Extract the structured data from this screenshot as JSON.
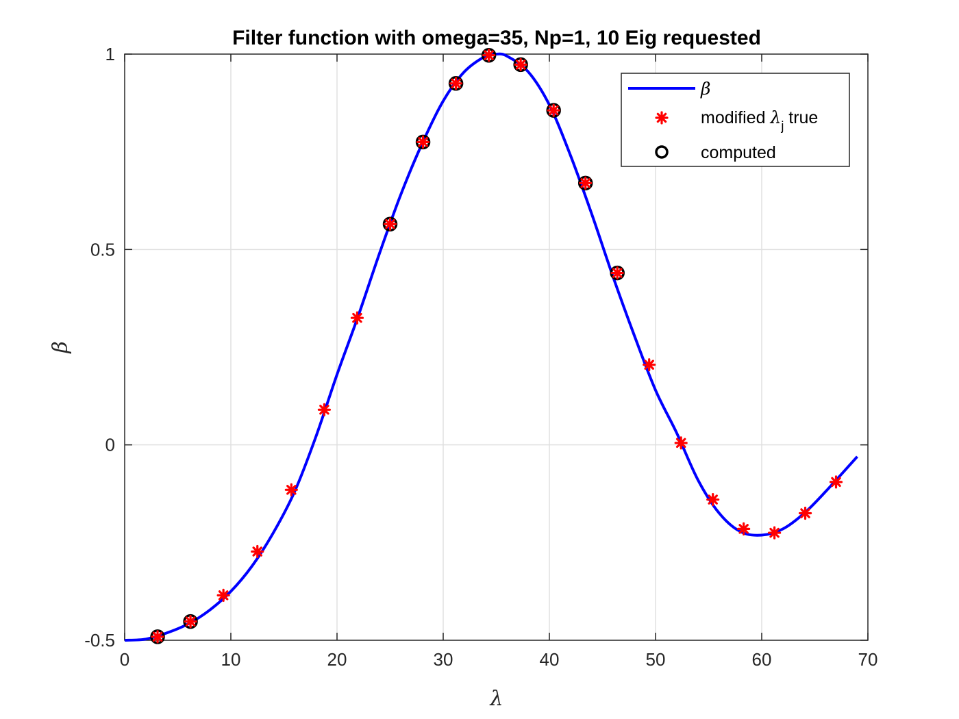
{
  "chart_data": {
    "type": "line",
    "title": "Filter function with omega=35, Np=1, 10 Eig requested",
    "xlabel": "λ",
    "ylabel": "β",
    "xlim": [
      0,
      70
    ],
    "ylim": [
      -0.5,
      1
    ],
    "xticks": [
      "0",
      "10",
      "20",
      "30",
      "40",
      "50",
      "60",
      "70"
    ],
    "yticks": [
      "-0.5",
      "0",
      "0.5",
      "1"
    ],
    "grid": true,
    "legend_position": "top-right",
    "colors": {
      "curve": "#0000ff",
      "true_marker": "#ff0000",
      "computed_marker": "#000000"
    },
    "series": [
      {
        "name": "β",
        "style": "line",
        "x": [
          0,
          2,
          4,
          6,
          8,
          10,
          12,
          14,
          16,
          18,
          20,
          22,
          24,
          26,
          28,
          30,
          32,
          34,
          35,
          36,
          38,
          40,
          42,
          44,
          46,
          48,
          50,
          52,
          54,
          56,
          58,
          60,
          62,
          64,
          66,
          69
        ],
        "y": [
          -0.5,
          -0.497,
          -0.481,
          -0.458,
          -0.423,
          -0.375,
          -0.31,
          -0.225,
          -0.12,
          0.02,
          0.18,
          0.33,
          0.49,
          0.64,
          0.77,
          0.88,
          0.955,
          0.995,
          1.0,
          0.995,
          0.955,
          0.87,
          0.74,
          0.59,
          0.43,
          0.28,
          0.14,
          0.03,
          -0.09,
          -0.175,
          -0.222,
          -0.231,
          -0.215,
          -0.175,
          -0.12,
          -0.03
        ]
      },
      {
        "name": "modified λ_j true",
        "style": "marker-asterisk",
        "x": [
          3.1,
          6.2,
          9.3,
          12.5,
          15.7,
          18.8,
          21.9,
          25.0,
          28.1,
          31.2,
          34.3,
          37.3,
          40.4,
          43.4,
          46.4,
          49.4,
          52.4,
          55.4,
          58.3,
          61.2,
          64.1,
          67.0
        ],
        "y": [
          -0.491,
          -0.452,
          -0.385,
          -0.273,
          -0.115,
          0.09,
          0.325,
          0.565,
          0.775,
          0.925,
          0.997,
          0.973,
          0.856,
          0.67,
          0.44,
          0.205,
          0.005,
          -0.14,
          -0.215,
          -0.225,
          -0.175,
          -0.095
        ]
      },
      {
        "name": "computed",
        "style": "marker-circle",
        "x": [
          3.1,
          6.2,
          25.0,
          28.1,
          31.2,
          34.3,
          37.3,
          40.4,
          43.4,
          46.4
        ],
        "y": [
          -0.491,
          -0.452,
          0.565,
          0.775,
          0.925,
          0.997,
          0.973,
          0.856,
          0.67,
          0.44
        ]
      }
    ],
    "legend": {
      "entries": [
        {
          "label": "β",
          "label_parts": null
        },
        {
          "label": "modified λj true",
          "label_parts": [
            "modified ",
            "λ",
            "j",
            " true"
          ]
        },
        {
          "label": "computed",
          "label_parts": null
        }
      ]
    }
  }
}
